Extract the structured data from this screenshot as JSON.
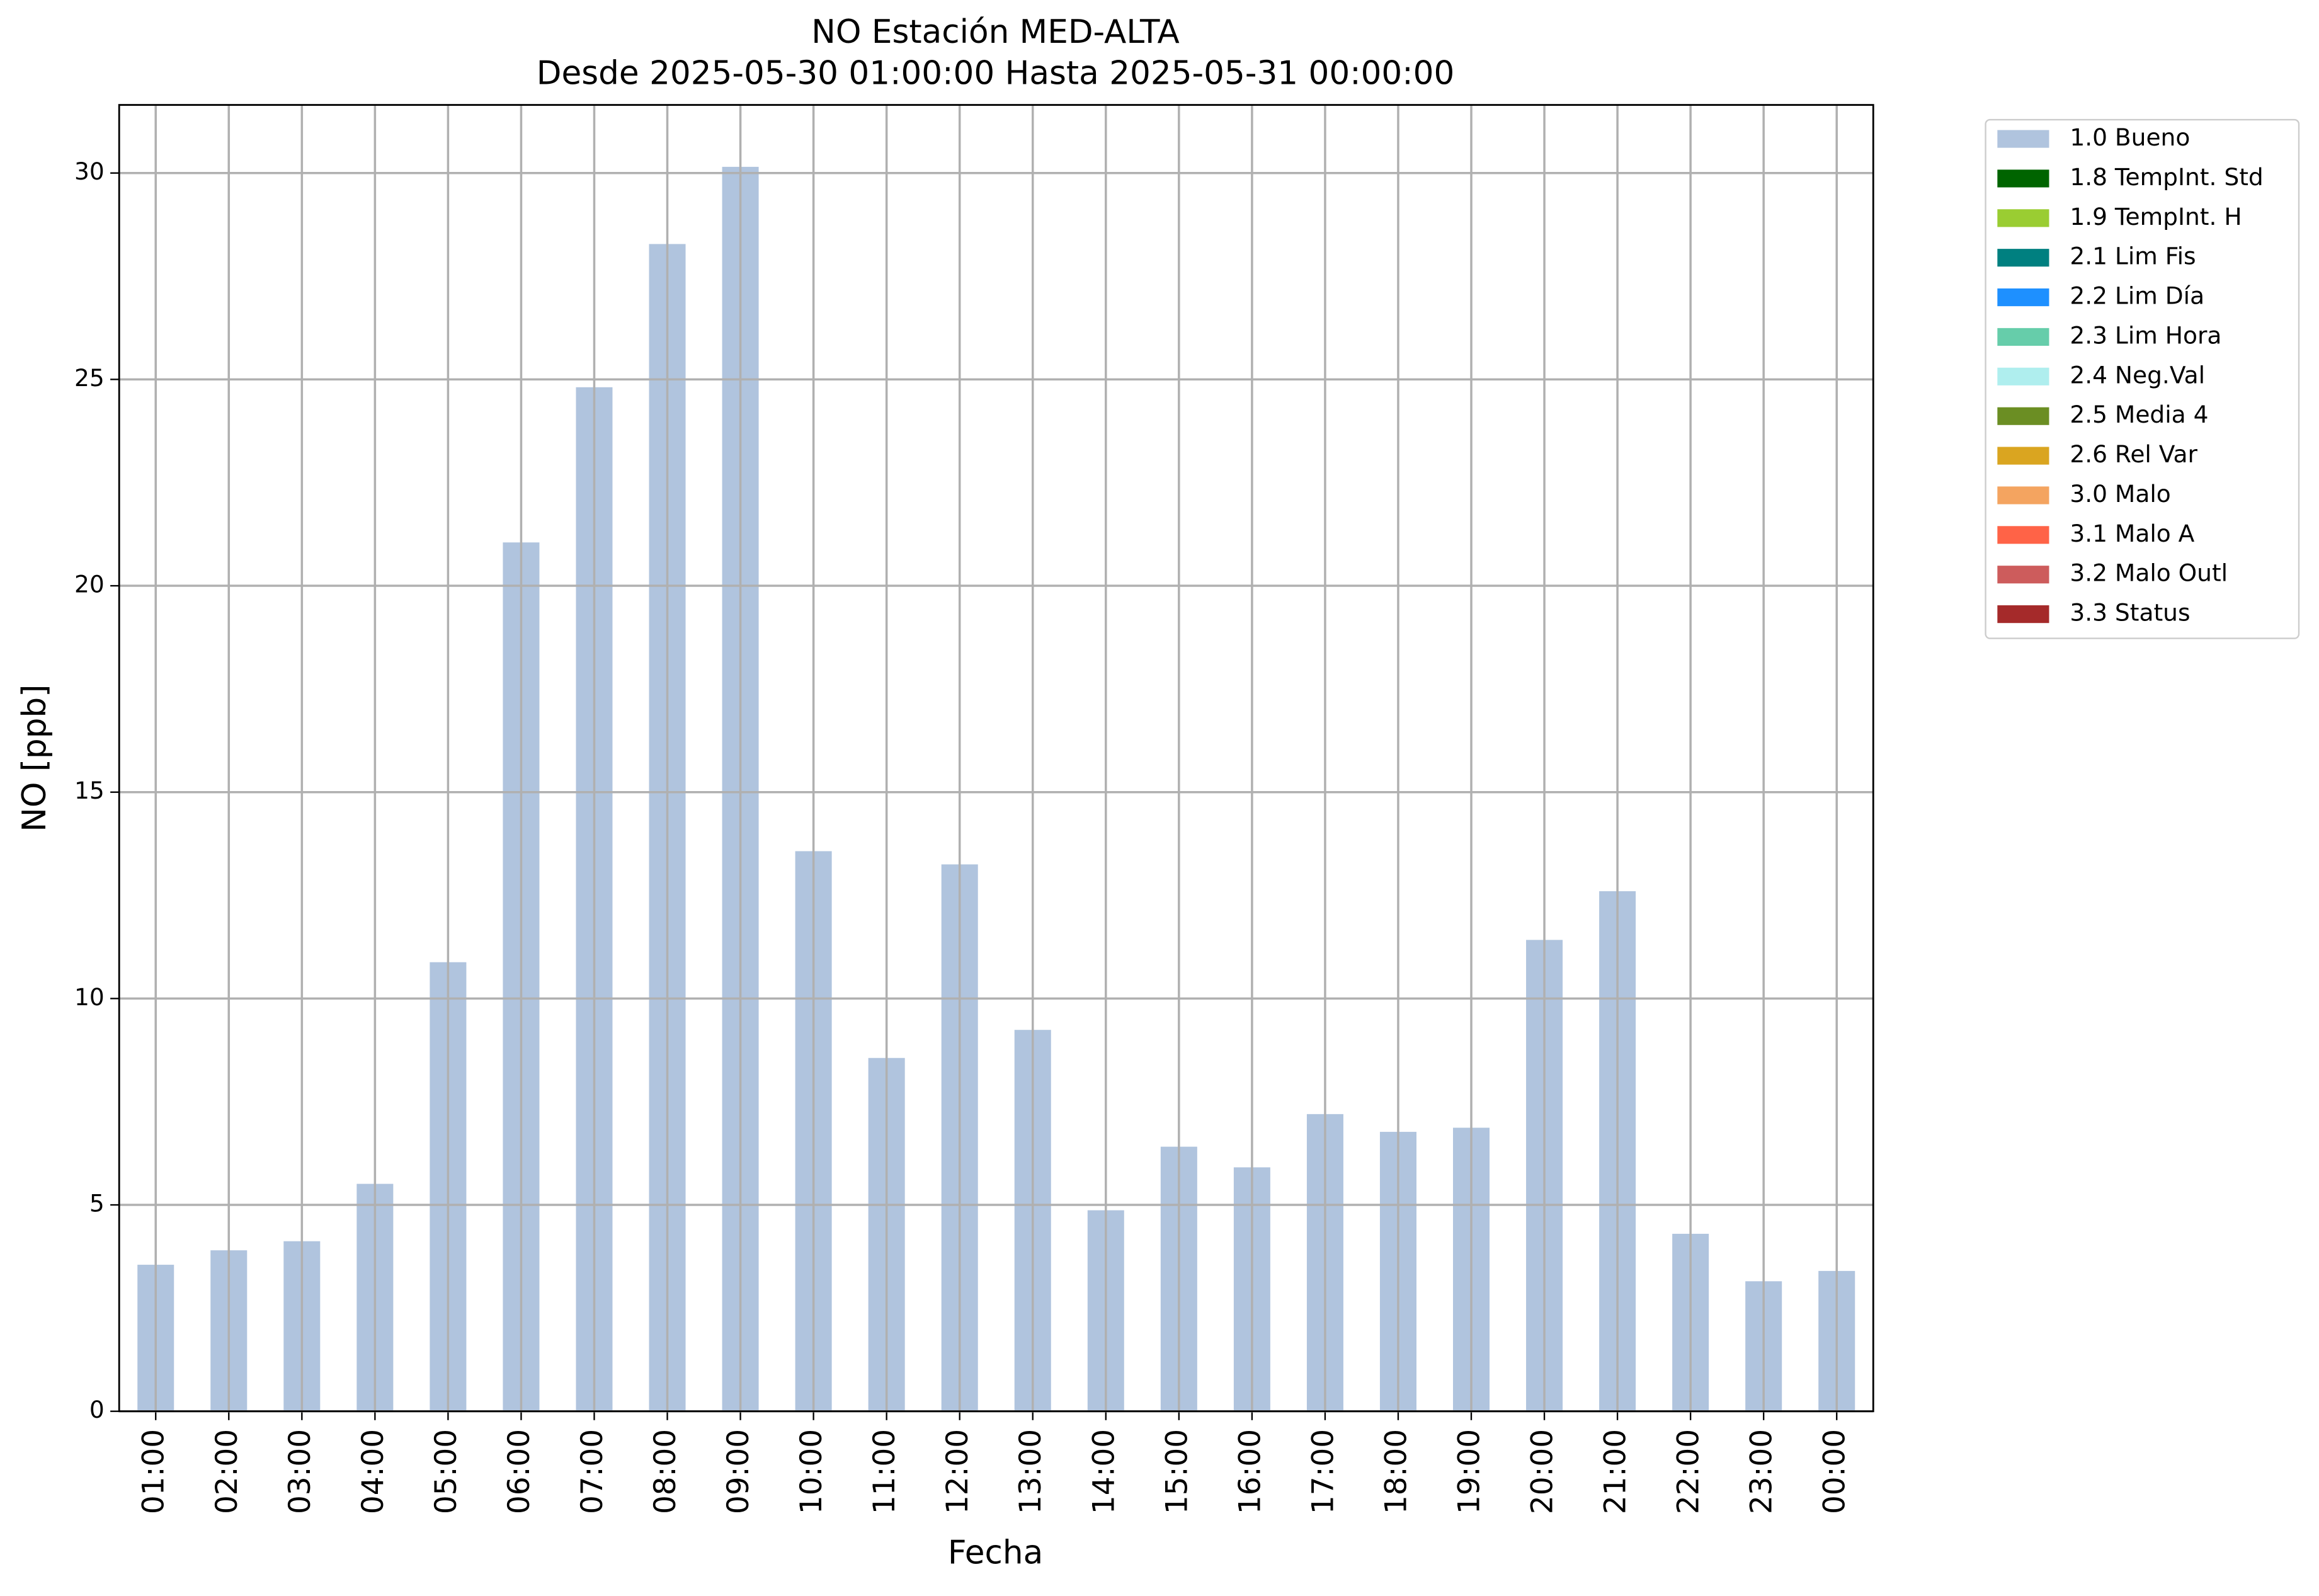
{
  "chart_data": {
    "type": "bar",
    "title": "NO Estación MED-ALTA",
    "subtitle": "Desde 2025-05-30 01:00:00 Hasta 2025-05-31 00:00:00",
    "x_label": "Fecha",
    "y_label": "NO [ppb]",
    "categories": [
      "01:00",
      "02:00",
      "03:00",
      "04:00",
      "05:00",
      "06:00",
      "07:00",
      "08:00",
      "09:00",
      "10:00",
      "11:00",
      "12:00",
      "13:00",
      "14:00",
      "15:00",
      "16:00",
      "17:00",
      "18:00",
      "19:00",
      "20:00",
      "21:00",
      "22:00",
      "23:00",
      "00:00"
    ],
    "values": [
      3.55,
      3.9,
      4.12,
      5.51,
      10.88,
      21.05,
      24.81,
      28.28,
      30.15,
      13.57,
      8.56,
      13.25,
      9.24,
      4.87,
      6.41,
      5.91,
      7.2,
      6.77,
      6.87,
      11.42,
      12.6,
      4.3,
      3.15,
      3.4
    ],
    "color": "#b0c4de",
    "ylim": [
      0,
      31.65
    ],
    "yticks": [
      0,
      5,
      10,
      15,
      20,
      25,
      30
    ],
    "grid": true,
    "legend_position": "outside-upper-right",
    "legend": [
      {
        "name": "1.0 Bueno",
        "color": "#b0c4de"
      },
      {
        "name": "1.8 TempInt. Std",
        "color": "#006400"
      },
      {
        "name": "1.9 TempInt. H",
        "color": "#9acd32"
      },
      {
        "name": "2.1 Lim Fis",
        "color": "#008080"
      },
      {
        "name": "2.2 Lim Día",
        "color": "#1e90ff"
      },
      {
        "name": "2.3 Lim Hora",
        "color": "#66cdaa"
      },
      {
        "name": "2.4 Neg.Val",
        "color": "#afeeee"
      },
      {
        "name": "2.5 Media 4",
        "color": "#6b8e23"
      },
      {
        "name": "2.6 Rel Var",
        "color": "#daa520"
      },
      {
        "name": "3.0 Malo",
        "color": "#f4a460"
      },
      {
        "name": "3.1 Malo A",
        "color": "#ff6347"
      },
      {
        "name": "3.2 Malo Outl",
        "color": "#cd5c5c"
      },
      {
        "name": "3.3 Status",
        "color": "#a52a2a"
      }
    ]
  }
}
